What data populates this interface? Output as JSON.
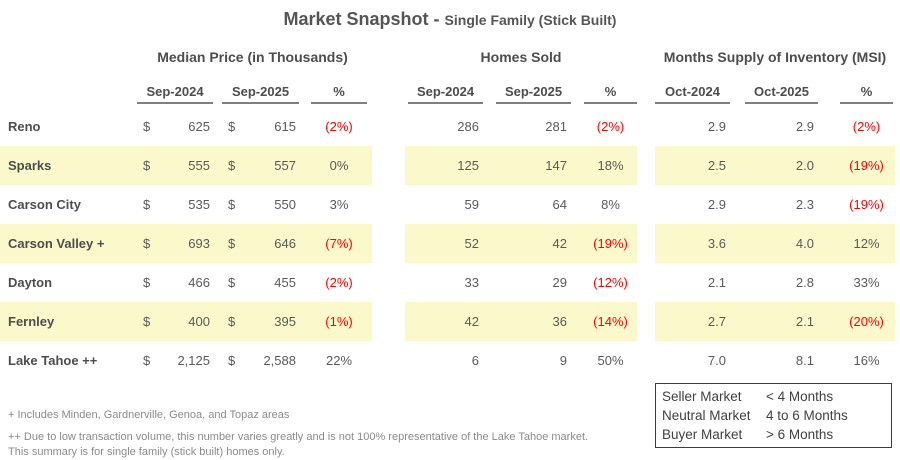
{
  "title": {
    "main": "Market Snapshot -",
    "sub": "Single Family (Stick Built)"
  },
  "currency_symbol": "$",
  "groups": [
    {
      "label": "Median Price (in Thousands)",
      "col1": "Sep-2024",
      "col2": "Sep-2025",
      "pct": "%"
    },
    {
      "label": "Homes Sold",
      "col1": "Sep-2024",
      "col2": "Sep-2025",
      "pct": "%"
    },
    {
      "label": "Months Supply of Inventory (MSI)",
      "col1": "Oct-2024",
      "col2": "Oct-2025",
      "pct": "%"
    }
  ],
  "rows": [
    {
      "name": "Reno",
      "highlight": false,
      "median": {
        "v1": "625",
        "v2": "615",
        "pct": "(2%)",
        "neg": true
      },
      "homes": {
        "v1": "286",
        "v2": "281",
        "pct": "(2%)",
        "neg": true
      },
      "msi": {
        "v1": "2.9",
        "v2": "2.9",
        "pct": "(2%)",
        "neg": true
      }
    },
    {
      "name": "Sparks",
      "highlight": true,
      "median": {
        "v1": "555",
        "v2": "557",
        "pct": "0%",
        "neg": false
      },
      "homes": {
        "v1": "125",
        "v2": "147",
        "pct": "18%",
        "neg": false
      },
      "msi": {
        "v1": "2.5",
        "v2": "2.0",
        "pct": "(19%)",
        "neg": true
      }
    },
    {
      "name": "Carson City",
      "highlight": false,
      "median": {
        "v1": "535",
        "v2": "550",
        "pct": "3%",
        "neg": false
      },
      "homes": {
        "v1": "59",
        "v2": "64",
        "pct": "8%",
        "neg": false
      },
      "msi": {
        "v1": "2.9",
        "v2": "2.3",
        "pct": "(19%)",
        "neg": true
      }
    },
    {
      "name": "Carson Valley +",
      "highlight": true,
      "median": {
        "v1": "693",
        "v2": "646",
        "pct": "(7%)",
        "neg": true
      },
      "homes": {
        "v1": "52",
        "v2": "42",
        "pct": "(19%)",
        "neg": true
      },
      "msi": {
        "v1": "3.6",
        "v2": "4.0",
        "pct": "12%",
        "neg": false
      }
    },
    {
      "name": "Dayton",
      "highlight": false,
      "median": {
        "v1": "466",
        "v2": "455",
        "pct": "(2%)",
        "neg": true
      },
      "homes": {
        "v1": "33",
        "v2": "29",
        "pct": "(12%)",
        "neg": true
      },
      "msi": {
        "v1": "2.1",
        "v2": "2.8",
        "pct": "33%",
        "neg": false
      }
    },
    {
      "name": "Fernley",
      "highlight": true,
      "median": {
        "v1": "400",
        "v2": "395",
        "pct": "(1%)",
        "neg": true
      },
      "homes": {
        "v1": "42",
        "v2": "36",
        "pct": "(14%)",
        "neg": true
      },
      "msi": {
        "v1": "2.7",
        "v2": "2.1",
        "pct": "(20%)",
        "neg": true
      }
    },
    {
      "name": "Lake Tahoe ++",
      "highlight": false,
      "median": {
        "v1": "2,125",
        "v2": "2,588",
        "pct": "22%",
        "neg": false
      },
      "homes": {
        "v1": "6",
        "v2": "9",
        "pct": "50%",
        "neg": false
      },
      "msi": {
        "v1": "7.0",
        "v2": "8.1",
        "pct": "16%",
        "neg": false
      }
    }
  ],
  "footnotes": [
    "+ Includes Minden, Gardnerville, Genoa, and Topaz areas",
    "++ Due to low transaction volume, this number varies greatly and is not 100% representative of the Lake Tahoe market.",
    "This summary is for single family (stick built) homes only."
  ],
  "legend": {
    "rows": [
      {
        "label": "Seller Market",
        "value": "< 4 Months"
      },
      {
        "label": "Neutral Market",
        "value": "4 to 6 Months"
      },
      {
        "label": "Buyer Market",
        "value": "> 6  Months"
      }
    ]
  },
  "colors": {
    "highlight_row": "#fbf9cc",
    "negative_pct": "#ff0000",
    "text": "#595959"
  }
}
